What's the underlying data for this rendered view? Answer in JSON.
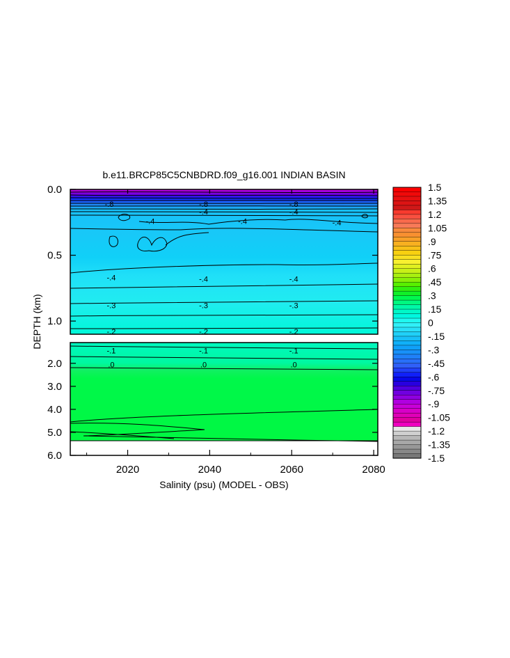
{
  "chart_data": {
    "type": "heatmap",
    "title": "b.e11.BRCP85C5CNBDRD.f09_g16.001 INDIAN BASIN",
    "xlabel": "Salinity (psu) (MODEL - OBS)",
    "ylabel": "DEPTH (km)",
    "x_ticks": [
      "2020",
      "2040",
      "2060",
      "2080"
    ],
    "x_tick_values": [
      2020,
      2040,
      2060,
      2080
    ],
    "xlim": [
      2006,
      2081
    ],
    "upper_panel": {
      "y_ticks": [
        "0.0",
        "0.5",
        "1.0"
      ],
      "y_tick_values": [
        0.0,
        0.5,
        1.0
      ],
      "ylim": [
        0.0,
        1.1
      ]
    },
    "lower_panel": {
      "y_ticks": [
        "2.0",
        "3.0",
        "4.0",
        "5.0",
        "6.0"
      ],
      "y_tick_values": [
        2.0,
        3.0,
        4.0,
        5.0,
        6.0
      ],
      "ylim": [
        1.1,
        6.0
      ]
    },
    "colorbar": {
      "labels": [
        "1.5",
        "1.35",
        "1.2",
        "1.05",
        ".9",
        ".75",
        ".6",
        ".45",
        ".3",
        ".15",
        "0",
        "-.15",
        "-.3",
        "-.45",
        "-.6",
        "-.75",
        "-.9",
        "-1.05",
        "-1.2",
        "-1.35",
        "-1.5"
      ],
      "range": [
        -1.5,
        1.5
      ],
      "step": 0.075,
      "colors": [
        "#ff0000",
        "#f00a0a",
        "#e81010",
        "#dc1414",
        "#d01818",
        "#f83a2e",
        "#f85040",
        "#f86a4c",
        "#f87a58",
        "#f88a3c",
        "#f89030",
        "#f8a028",
        "#f8b020",
        "#f8c018",
        "#f8d010",
        "#f8e020",
        "#f8f030",
        "#e0f020",
        "#c8f018",
        "#a8f010",
        "#88f008",
        "#58f000",
        "#30f010",
        "#10f028",
        "#00f850",
        "#00f880",
        "#00f8a8",
        "#00f8c8",
        "#00f8e0",
        "#20f8f0",
        "#30f0f8",
        "#28e0f8",
        "#20d0f8",
        "#18c0f8",
        "#10b0f8",
        "#10a0f8",
        "#1890f8",
        "#2080f8",
        "#2870f8",
        "#3060f8",
        "#2040f8",
        "#1020f8",
        "#0808e8",
        "#2800e0",
        "#5000e0",
        "#7000e0",
        "#9000e0",
        "#b000e0",
        "#c800d8",
        "#d800c8",
        "#e000b8",
        "#e000a0",
        "#f000c0",
        "#e8e8e8",
        "#d0d0d0",
        "#b8b8b8",
        "#a8a8a8",
        "#989898",
        "#888888",
        "#787878"
      ]
    },
    "contour_labels": [
      {
        "text": "-.8",
        "x": 2015.5,
        "depth": 0.11
      },
      {
        "text": "-.8",
        "x": 2038.5,
        "depth": 0.11
      },
      {
        "text": "-.8",
        "x": 2060.5,
        "depth": 0.11
      },
      {
        "text": "-.4",
        "x": 2038.5,
        "depth": 0.17
      },
      {
        "text": "-.4",
        "x": 2060.5,
        "depth": 0.17
      },
      {
        "text": "-.4",
        "x": 2025.5,
        "depth": 0.24
      },
      {
        "text": "-.4",
        "x": 2048,
        "depth": 0.24
      },
      {
        "text": "-.4",
        "x": 2071,
        "depth": 0.25
      },
      {
        "text": "-.4",
        "x": 2016,
        "depth": 0.67
      },
      {
        "text": "-.4",
        "x": 2038.5,
        "depth": 0.68
      },
      {
        "text": "-.4",
        "x": 2060.5,
        "depth": 0.68
      },
      {
        "text": "-.3",
        "x": 2016,
        "depth": 0.88
      },
      {
        "text": "-.3",
        "x": 2038.5,
        "depth": 0.88
      },
      {
        "text": "-.3",
        "x": 2060.5,
        "depth": 0.88
      },
      {
        "text": "-.2",
        "x": 2016,
        "depth": 1.08
      },
      {
        "text": "-.2",
        "x": 2038.5,
        "depth": 1.08
      },
      {
        "text": "-.2",
        "x": 2060.5,
        "depth": 1.08
      },
      {
        "text": "-.1",
        "x": 2016,
        "depth": 1.45
      },
      {
        "text": "-.1",
        "x": 2038.5,
        "depth": 1.45
      },
      {
        "text": "-.1",
        "x": 2060.5,
        "depth": 1.45
      },
      {
        "text": ".0",
        "x": 2016,
        "depth": 2.05
      },
      {
        "text": ".0",
        "x": 2038.5,
        "depth": 2.05
      },
      {
        "text": ".0",
        "x": 2060.5,
        "depth": 2.05
      }
    ],
    "legend": "right"
  }
}
